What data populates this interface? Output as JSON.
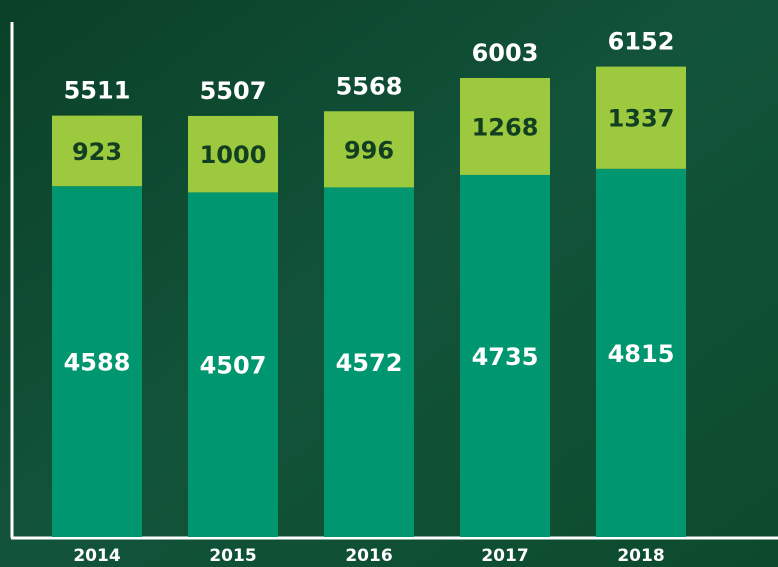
{
  "chart_data": {
    "type": "stacked_bar",
    "categories": [
      "2014",
      "2015",
      "2016",
      "2017",
      "2018"
    ],
    "series": [
      {
        "color": "#009670",
        "label_color": "#ffffff",
        "values": [
          4588,
          4507,
          4572,
          4735,
          4815
        ]
      },
      {
        "color": "#9dc93e",
        "label_color": "#123f22",
        "values": [
          923,
          1000,
          996,
          1268,
          1337
        ]
      }
    ],
    "totals": [
      5511,
      5507,
      5568,
      6003,
      6152
    ],
    "ylim": [
      0,
      6500
    ]
  }
}
